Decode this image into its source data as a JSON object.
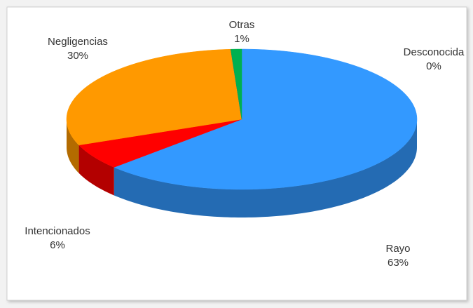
{
  "chart_data": {
    "type": "pie3d",
    "categories": [
      "Rayo",
      "Intencionados",
      "Negligencias",
      "Desconocida",
      "Otras"
    ],
    "values": [
      63,
      6,
      30,
      0,
      1
    ],
    "value_labels": [
      "63%",
      "6%",
      "30%",
      "0%",
      "1%"
    ],
    "colors": [
      "#3399ff",
      "#ff0000",
      "#ff9900",
      "#7030a0",
      "#00b050"
    ]
  }
}
